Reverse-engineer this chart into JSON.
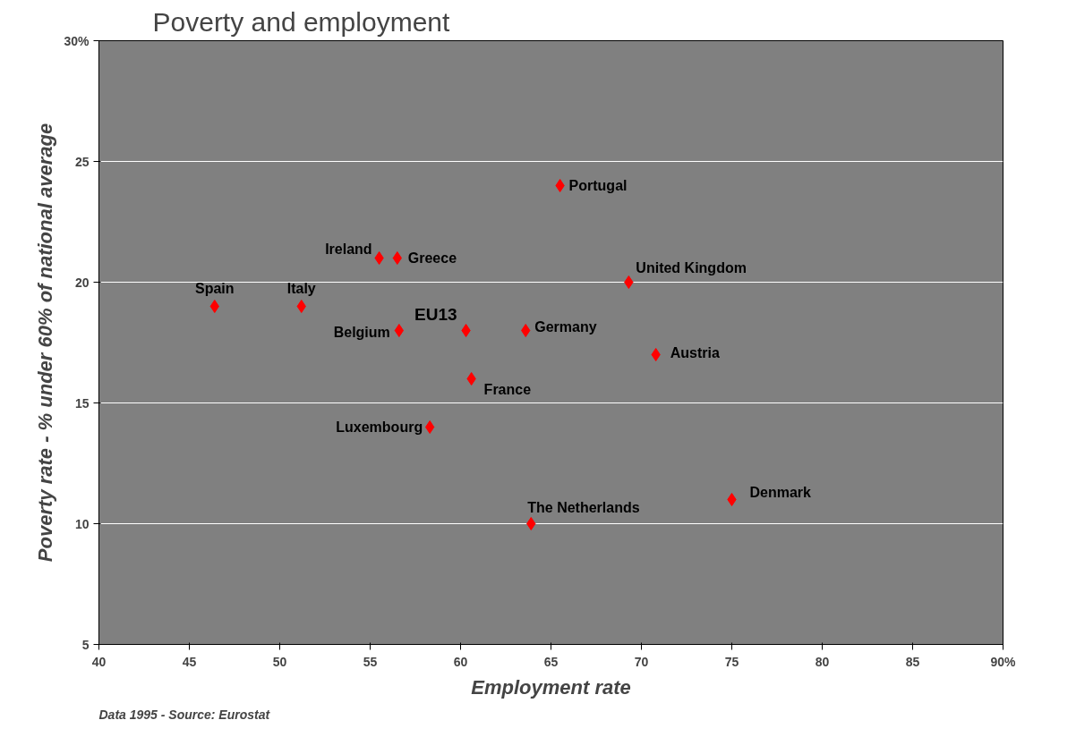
{
  "chart_data": {
    "type": "scatter",
    "title": "Poverty and employment",
    "xlabel": "Employment rate",
    "ylabel": "Poverty rate - % under 60% of national average",
    "x": [
      46.4,
      51.2,
      55.5,
      56.5,
      56.6,
      60.3,
      60.6,
      58.3,
      63.6,
      63.9,
      65.5,
      69.3,
      70.8,
      75.0
    ],
    "series": [
      {
        "color": "#ff0000",
        "values": [
          19,
          19,
          21,
          21,
          18,
          18,
          16,
          14,
          18,
          10,
          24,
          20,
          17,
          11
        ]
      }
    ],
    "xlim": [
      40,
      90
    ],
    "ylim": [
      5,
      30
    ],
    "xticks": [
      40,
      45,
      50,
      55,
      60,
      65,
      70,
      75,
      80,
      85,
      {
        "value": 90,
        "label": "90%"
      }
    ],
    "yticks": [
      5,
      10,
      15,
      20,
      25,
      {
        "value": 30,
        "label": "30%"
      }
    ],
    "grid": "y",
    "marker": "diamond",
    "annotations": [
      {
        "text": "Spain",
        "x": 46.4,
        "y": 19
      },
      {
        "text": "Italy",
        "x": 51.2,
        "y": 19
      },
      {
        "text": "Ireland",
        "x": 55.5,
        "y": 21
      },
      {
        "text": "Greece",
        "x": 56.5,
        "y": 21
      },
      {
        "text": "Belgium",
        "x": 56.6,
        "y": 18
      },
      {
        "text": "EU13",
        "x": 60.3,
        "y": 18
      },
      {
        "text": "France",
        "x": 60.6,
        "y": 16
      },
      {
        "text": "Luxembourg",
        "x": 58.3,
        "y": 14
      },
      {
        "text": "Germany",
        "x": 63.6,
        "y": 18
      },
      {
        "text": "The Netherlands",
        "x": 63.9,
        "y": 10
      },
      {
        "text": "Portugal",
        "x": 65.5,
        "y": 24
      },
      {
        "text": "United Kingdom",
        "x": 69.3,
        "y": 20
      },
      {
        "text": "Austria",
        "x": 70.8,
        "y": 17
      },
      {
        "text": "Denmark",
        "x": 75.0,
        "y": 11
      },
      "Data 1995 - Source: Eurostat"
    ]
  }
}
